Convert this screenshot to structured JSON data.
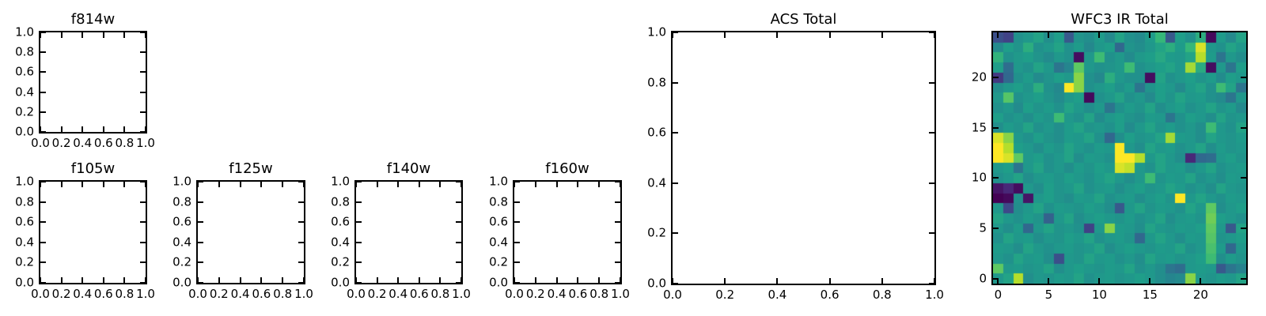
{
  "figure": {
    "background": "#ffffff",
    "axis_color": "#000000",
    "text_color": "#000000"
  },
  "chart_data": [
    {
      "id": "f814w",
      "type": "scatter",
      "title": "f814w",
      "xlabel": "",
      "ylabel": "",
      "xlim": [
        0,
        1
      ],
      "ylim": [
        0,
        1
      ],
      "xticks": [
        0,
        0.2,
        0.4,
        0.6,
        0.8,
        1
      ],
      "xtick_labels": [
        "0.0",
        "0.2",
        "0.4",
        "0.6",
        "0.8",
        "1.0"
      ],
      "yticks": [
        0,
        0.2,
        0.4,
        0.6,
        0.8,
        1
      ],
      "ytick_labels": [
        "0.0",
        "0.2",
        "0.4",
        "0.6",
        "0.8",
        "1.0"
      ],
      "series": [],
      "note": "empty axes, no data plotted"
    },
    {
      "id": "f105w",
      "type": "scatter",
      "title": "f105w",
      "xlabel": "",
      "ylabel": "",
      "xlim": [
        0,
        1
      ],
      "ylim": [
        0,
        1
      ],
      "xticks": [
        0,
        0.2,
        0.4,
        0.6,
        0.8,
        1
      ],
      "xtick_labels": [
        "0.0",
        "0.2",
        "0.4",
        "0.6",
        "0.8",
        "1.0"
      ],
      "yticks": [
        0,
        0.2,
        0.4,
        0.6,
        0.8,
        1
      ],
      "ytick_labels": [
        "0.0",
        "0.2",
        "0.4",
        "0.6",
        "0.8",
        "1.0"
      ],
      "series": [],
      "note": "empty axes, no data plotted"
    },
    {
      "id": "f125w",
      "type": "scatter",
      "title": "f125w",
      "xlabel": "",
      "ylabel": "",
      "xlim": [
        0,
        1
      ],
      "ylim": [
        0,
        1
      ],
      "xticks": [
        0,
        0.2,
        0.4,
        0.6,
        0.8,
        1
      ],
      "xtick_labels": [
        "0.0",
        "0.2",
        "0.4",
        "0.6",
        "0.8",
        "1.0"
      ],
      "yticks": [
        0,
        0.2,
        0.4,
        0.6,
        0.8,
        1
      ],
      "ytick_labels": [
        "0.0",
        "0.2",
        "0.4",
        "0.6",
        "0.8",
        "1.0"
      ],
      "series": [],
      "note": "empty axes, no data plotted"
    },
    {
      "id": "f140w",
      "type": "scatter",
      "title": "f140w",
      "xlabel": "",
      "ylabel": "",
      "xlim": [
        0,
        1
      ],
      "ylim": [
        0,
        1
      ],
      "xticks": [
        0,
        0.2,
        0.4,
        0.6,
        0.8,
        1
      ],
      "xtick_labels": [
        "0.0",
        "0.2",
        "0.4",
        "0.6",
        "0.8",
        "1.0"
      ],
      "yticks": [
        0,
        0.2,
        0.4,
        0.6,
        0.8,
        1
      ],
      "ytick_labels": [
        "0.0",
        "0.2",
        "0.4",
        "0.6",
        "0.8",
        "1.0"
      ],
      "series": [],
      "note": "empty axes, no data plotted"
    },
    {
      "id": "f160w",
      "type": "scatter",
      "title": "f160w",
      "xlabel": "",
      "ylabel": "",
      "xlim": [
        0,
        1
      ],
      "ylim": [
        0,
        1
      ],
      "xticks": [
        0,
        0.2,
        0.4,
        0.6,
        0.8,
        1
      ],
      "xtick_labels": [
        "0.0",
        "0.2",
        "0.4",
        "0.6",
        "0.8",
        "1.0"
      ],
      "yticks": [
        0,
        0.2,
        0.4,
        0.6,
        0.8,
        1
      ],
      "ytick_labels": [
        "0.0",
        "0.2",
        "0.4",
        "0.6",
        "0.8",
        "1.0"
      ],
      "series": [],
      "note": "empty axes, no data plotted"
    },
    {
      "id": "acs",
      "type": "scatter",
      "title": "ACS Total",
      "xlabel": "",
      "ylabel": "",
      "xlim": [
        0,
        1
      ],
      "ylim": [
        0,
        1
      ],
      "xticks": [
        0,
        0.2,
        0.4,
        0.6,
        0.8,
        1
      ],
      "xtick_labels": [
        "0.0",
        "0.2",
        "0.4",
        "0.6",
        "0.8",
        "1.0"
      ],
      "yticks": [
        0,
        0.2,
        0.4,
        0.6,
        0.8,
        1
      ],
      "ytick_labels": [
        "0.0",
        "0.2",
        "0.4",
        "0.6",
        "0.8",
        "1.0"
      ],
      "series": [],
      "note": "empty axes, no data plotted"
    },
    {
      "id": "wfc3",
      "type": "heatmap",
      "title": "WFC3 IR Total",
      "xlabel": "",
      "ylabel": "",
      "xlim": [
        -0.5,
        24.5
      ],
      "ylim": [
        -0.5,
        24.5
      ],
      "xticks": [
        0,
        5,
        10,
        15,
        20
      ],
      "xtick_labels": [
        "0",
        "5",
        "10",
        "15",
        "20"
      ],
      "yticks": [
        0,
        5,
        10,
        15,
        20
      ],
      "ytick_labels": [
        "0",
        "5",
        "10",
        "15",
        "20"
      ],
      "shape": [
        25,
        25
      ],
      "colormap": "viridis",
      "values_normalized_0_1": true,
      "colormap_stops": [
        {
          "t": 0.0,
          "hex": "#440154"
        },
        {
          "t": 0.1,
          "hex": "#482878"
        },
        {
          "t": 0.2,
          "hex": "#3e4989"
        },
        {
          "t": 0.3,
          "hex": "#31688e"
        },
        {
          "t": 0.4,
          "hex": "#26828e"
        },
        {
          "t": 0.5,
          "hex": "#21918c"
        },
        {
          "t": 0.6,
          "hex": "#1f9e89"
        },
        {
          "t": 0.7,
          "hex": "#35b779"
        },
        {
          "t": 0.8,
          "hex": "#5ec962"
        },
        {
          "t": 0.9,
          "hex": "#b5de2b"
        },
        {
          "t": 1.0,
          "hex": "#fde725"
        }
      ],
      "values_rows_top_to_bottom": [
        [
          0.22,
          0.18,
          0.5,
          0.55,
          0.62,
          0.48,
          0.6,
          0.25,
          0.52,
          0.48,
          0.58,
          0.45,
          0.62,
          0.5,
          0.46,
          0.58,
          0.7,
          0.25,
          0.6,
          0.5,
          0.66,
          0.02,
          0.58,
          0.45,
          0.62
        ],
        [
          0.45,
          0.6,
          0.52,
          0.66,
          0.5,
          0.55,
          0.62,
          0.5,
          0.58,
          0.44,
          0.55,
          0.6,
          0.3,
          0.52,
          0.48,
          0.55,
          0.62,
          0.66,
          0.58,
          0.7,
          0.95,
          0.55,
          0.5,
          0.62,
          0.55
        ],
        [
          0.68,
          0.5,
          0.56,
          0.6,
          0.52,
          0.46,
          0.55,
          0.5,
          0.03,
          0.55,
          0.72,
          0.5,
          0.56,
          0.46,
          0.56,
          0.6,
          0.64,
          0.58,
          0.55,
          0.62,
          0.9,
          0.58,
          0.35,
          0.55,
          0.48
        ],
        [
          0.6,
          0.32,
          0.55,
          0.5,
          0.62,
          0.55,
          0.35,
          0.42,
          0.8,
          0.55,
          0.5,
          0.52,
          0.56,
          0.72,
          0.5,
          0.55,
          0.6,
          0.62,
          0.55,
          0.88,
          0.65,
          0.03,
          0.55,
          0.35,
          0.6
        ],
        [
          0.15,
          0.3,
          0.5,
          0.58,
          0.46,
          0.52,
          0.6,
          0.55,
          0.85,
          0.5,
          0.44,
          0.66,
          0.55,
          0.5,
          0.5,
          0.03,
          0.62,
          0.5,
          0.55,
          0.6,
          0.52,
          0.58,
          0.46,
          0.6,
          0.55
        ],
        [
          0.48,
          0.55,
          0.6,
          0.52,
          0.66,
          0.5,
          0.44,
          1.0,
          0.85,
          0.5,
          0.55,
          0.6,
          0.5,
          0.58,
          0.35,
          0.52,
          0.6,
          0.55,
          0.45,
          0.58,
          0.62,
          0.5,
          0.72,
          0.62,
          0.35
        ],
        [
          0.55,
          0.78,
          0.5,
          0.55,
          0.6,
          0.52,
          0.46,
          0.55,
          0.6,
          0.02,
          0.5,
          0.55,
          0.62,
          0.5,
          0.55,
          0.45,
          0.6,
          0.52,
          0.62,
          0.55,
          0.58,
          0.5,
          0.46,
          0.35,
          0.55
        ],
        [
          0.5,
          0.55,
          0.46,
          0.6,
          0.52,
          0.58,
          0.5,
          0.62,
          0.55,
          0.48,
          0.55,
          0.35,
          0.5,
          0.58,
          0.52,
          0.62,
          0.48,
          0.55,
          0.6,
          0.5,
          0.55,
          0.62,
          0.52,
          0.58,
          0.45
        ],
        [
          0.6,
          0.5,
          0.55,
          0.48,
          0.58,
          0.52,
          0.72,
          0.55,
          0.5,
          0.62,
          0.46,
          0.55,
          0.6,
          0.52,
          0.48,
          0.58,
          0.55,
          0.35,
          0.5,
          0.6,
          0.55,
          0.48,
          0.62,
          0.52,
          0.55
        ],
        [
          0.48,
          0.58,
          0.52,
          0.62,
          0.5,
          0.55,
          0.48,
          0.58,
          0.62,
          0.52,
          0.55,
          0.5,
          0.6,
          0.46,
          0.55,
          0.62,
          0.52,
          0.58,
          0.5,
          0.55,
          0.48,
          0.72,
          0.55,
          0.5,
          0.62
        ],
        [
          0.95,
          0.85,
          0.55,
          0.5,
          0.6,
          0.52,
          0.48,
          0.58,
          0.55,
          0.62,
          0.5,
          0.3,
          0.48,
          0.6,
          0.52,
          0.55,
          0.62,
          0.88,
          0.58,
          0.55,
          0.48,
          0.62,
          0.55,
          0.52,
          0.58
        ],
        [
          1.0,
          0.9,
          0.6,
          0.55,
          0.48,
          0.58,
          0.52,
          0.62,
          0.55,
          0.5,
          0.58,
          0.55,
          1.0,
          0.55,
          0.48,
          0.62,
          0.55,
          0.58,
          0.5,
          0.55,
          0.62,
          0.48,
          0.58,
          0.52,
          0.55
        ],
        [
          1.0,
          0.95,
          0.8,
          0.55,
          0.6,
          0.5,
          0.55,
          0.62,
          0.48,
          0.58,
          0.55,
          0.5,
          1.0,
          1.0,
          0.9,
          0.55,
          0.62,
          0.55,
          0.48,
          0.1,
          0.3,
          0.32,
          0.55,
          0.6,
          0.52
        ],
        [
          0.55,
          0.6,
          0.35,
          0.55,
          0.62,
          0.5,
          0.55,
          0.48,
          0.58,
          0.52,
          0.6,
          0.55,
          0.95,
          0.92,
          0.55,
          0.5,
          0.62,
          0.55,
          0.58,
          0.48,
          0.55,
          0.62,
          0.5,
          0.55,
          0.58
        ],
        [
          0.5,
          0.55,
          0.62,
          0.48,
          0.55,
          0.58,
          0.52,
          0.6,
          0.55,
          0.5,
          0.58,
          0.62,
          0.55,
          0.48,
          0.55,
          0.72,
          0.52,
          0.58,
          0.55,
          0.62,
          0.5,
          0.55,
          0.48,
          0.58,
          0.55
        ],
        [
          0.05,
          0.1,
          0.03,
          0.55,
          0.48,
          0.6,
          0.52,
          0.55,
          0.62,
          0.5,
          0.55,
          0.58,
          0.48,
          0.55,
          0.6,
          0.52,
          0.55,
          0.62,
          0.58,
          0.5,
          0.55,
          0.48,
          0.62,
          0.55,
          0.52
        ],
        [
          0.0,
          0.02,
          0.5,
          0.05,
          0.55,
          0.6,
          0.52,
          0.48,
          0.58,
          0.55,
          0.62,
          0.5,
          0.55,
          0.58,
          0.48,
          0.55,
          0.6,
          0.52,
          1.0,
          0.55,
          0.62,
          0.55,
          0.5,
          0.58,
          0.55
        ],
        [
          0.55,
          0.2,
          0.48,
          0.55,
          0.62,
          0.5,
          0.58,
          0.55,
          0.52,
          0.6,
          0.55,
          0.48,
          0.25,
          0.55,
          0.62,
          0.52,
          0.58,
          0.55,
          0.5,
          0.62,
          0.55,
          0.8,
          0.48,
          0.55,
          0.6
        ],
        [
          0.62,
          0.55,
          0.5,
          0.58,
          0.52,
          0.28,
          0.55,
          0.62,
          0.48,
          0.55,
          0.6,
          0.55,
          0.52,
          0.58,
          0.5,
          0.55,
          0.62,
          0.48,
          0.55,
          0.58,
          0.52,
          0.82,
          0.6,
          0.55,
          0.5
        ],
        [
          0.55,
          0.48,
          0.58,
          0.3,
          0.55,
          0.62,
          0.52,
          0.55,
          0.5,
          0.18,
          0.55,
          0.85,
          0.58,
          0.55,
          0.48,
          0.62,
          0.55,
          0.52,
          0.58,
          0.55,
          0.6,
          0.8,
          0.55,
          0.25,
          0.62
        ],
        [
          0.5,
          0.62,
          0.55,
          0.58,
          0.48,
          0.55,
          0.52,
          0.6,
          0.55,
          0.62,
          0.5,
          0.55,
          0.58,
          0.52,
          0.3,
          0.55,
          0.62,
          0.55,
          0.48,
          0.58,
          0.55,
          0.78,
          0.52,
          0.55,
          0.6
        ],
        [
          0.58,
          0.55,
          0.48,
          0.62,
          0.55,
          0.5,
          0.55,
          0.58,
          0.52,
          0.55,
          0.62,
          0.48,
          0.55,
          0.6,
          0.55,
          0.52,
          0.58,
          0.55,
          0.62,
          0.5,
          0.55,
          0.75,
          0.58,
          0.3,
          0.55
        ],
        [
          0.55,
          0.5,
          0.62,
          0.55,
          0.58,
          0.48,
          0.22,
          0.55,
          0.52,
          0.62,
          0.55,
          0.58,
          0.5,
          0.55,
          0.48,
          0.62,
          0.55,
          0.58,
          0.52,
          0.55,
          0.6,
          0.72,
          0.48,
          0.58,
          0.52
        ],
        [
          0.8,
          0.55,
          0.58,
          0.52,
          0.55,
          0.62,
          0.48,
          0.55,
          0.6,
          0.55,
          0.52,
          0.58,
          0.55,
          0.62,
          0.5,
          0.55,
          0.48,
          0.35,
          0.32,
          0.55,
          0.58,
          0.55,
          0.25,
          0.35,
          0.4
        ],
        [
          0.55,
          0.62,
          0.9,
          0.48,
          0.55,
          0.52,
          0.58,
          0.55,
          0.62,
          0.5,
          0.55,
          0.58,
          0.52,
          0.55,
          0.6,
          0.55,
          0.48,
          0.42,
          0.45,
          0.85,
          0.55,
          0.52,
          0.58,
          0.55,
          0.62
        ]
      ]
    }
  ]
}
